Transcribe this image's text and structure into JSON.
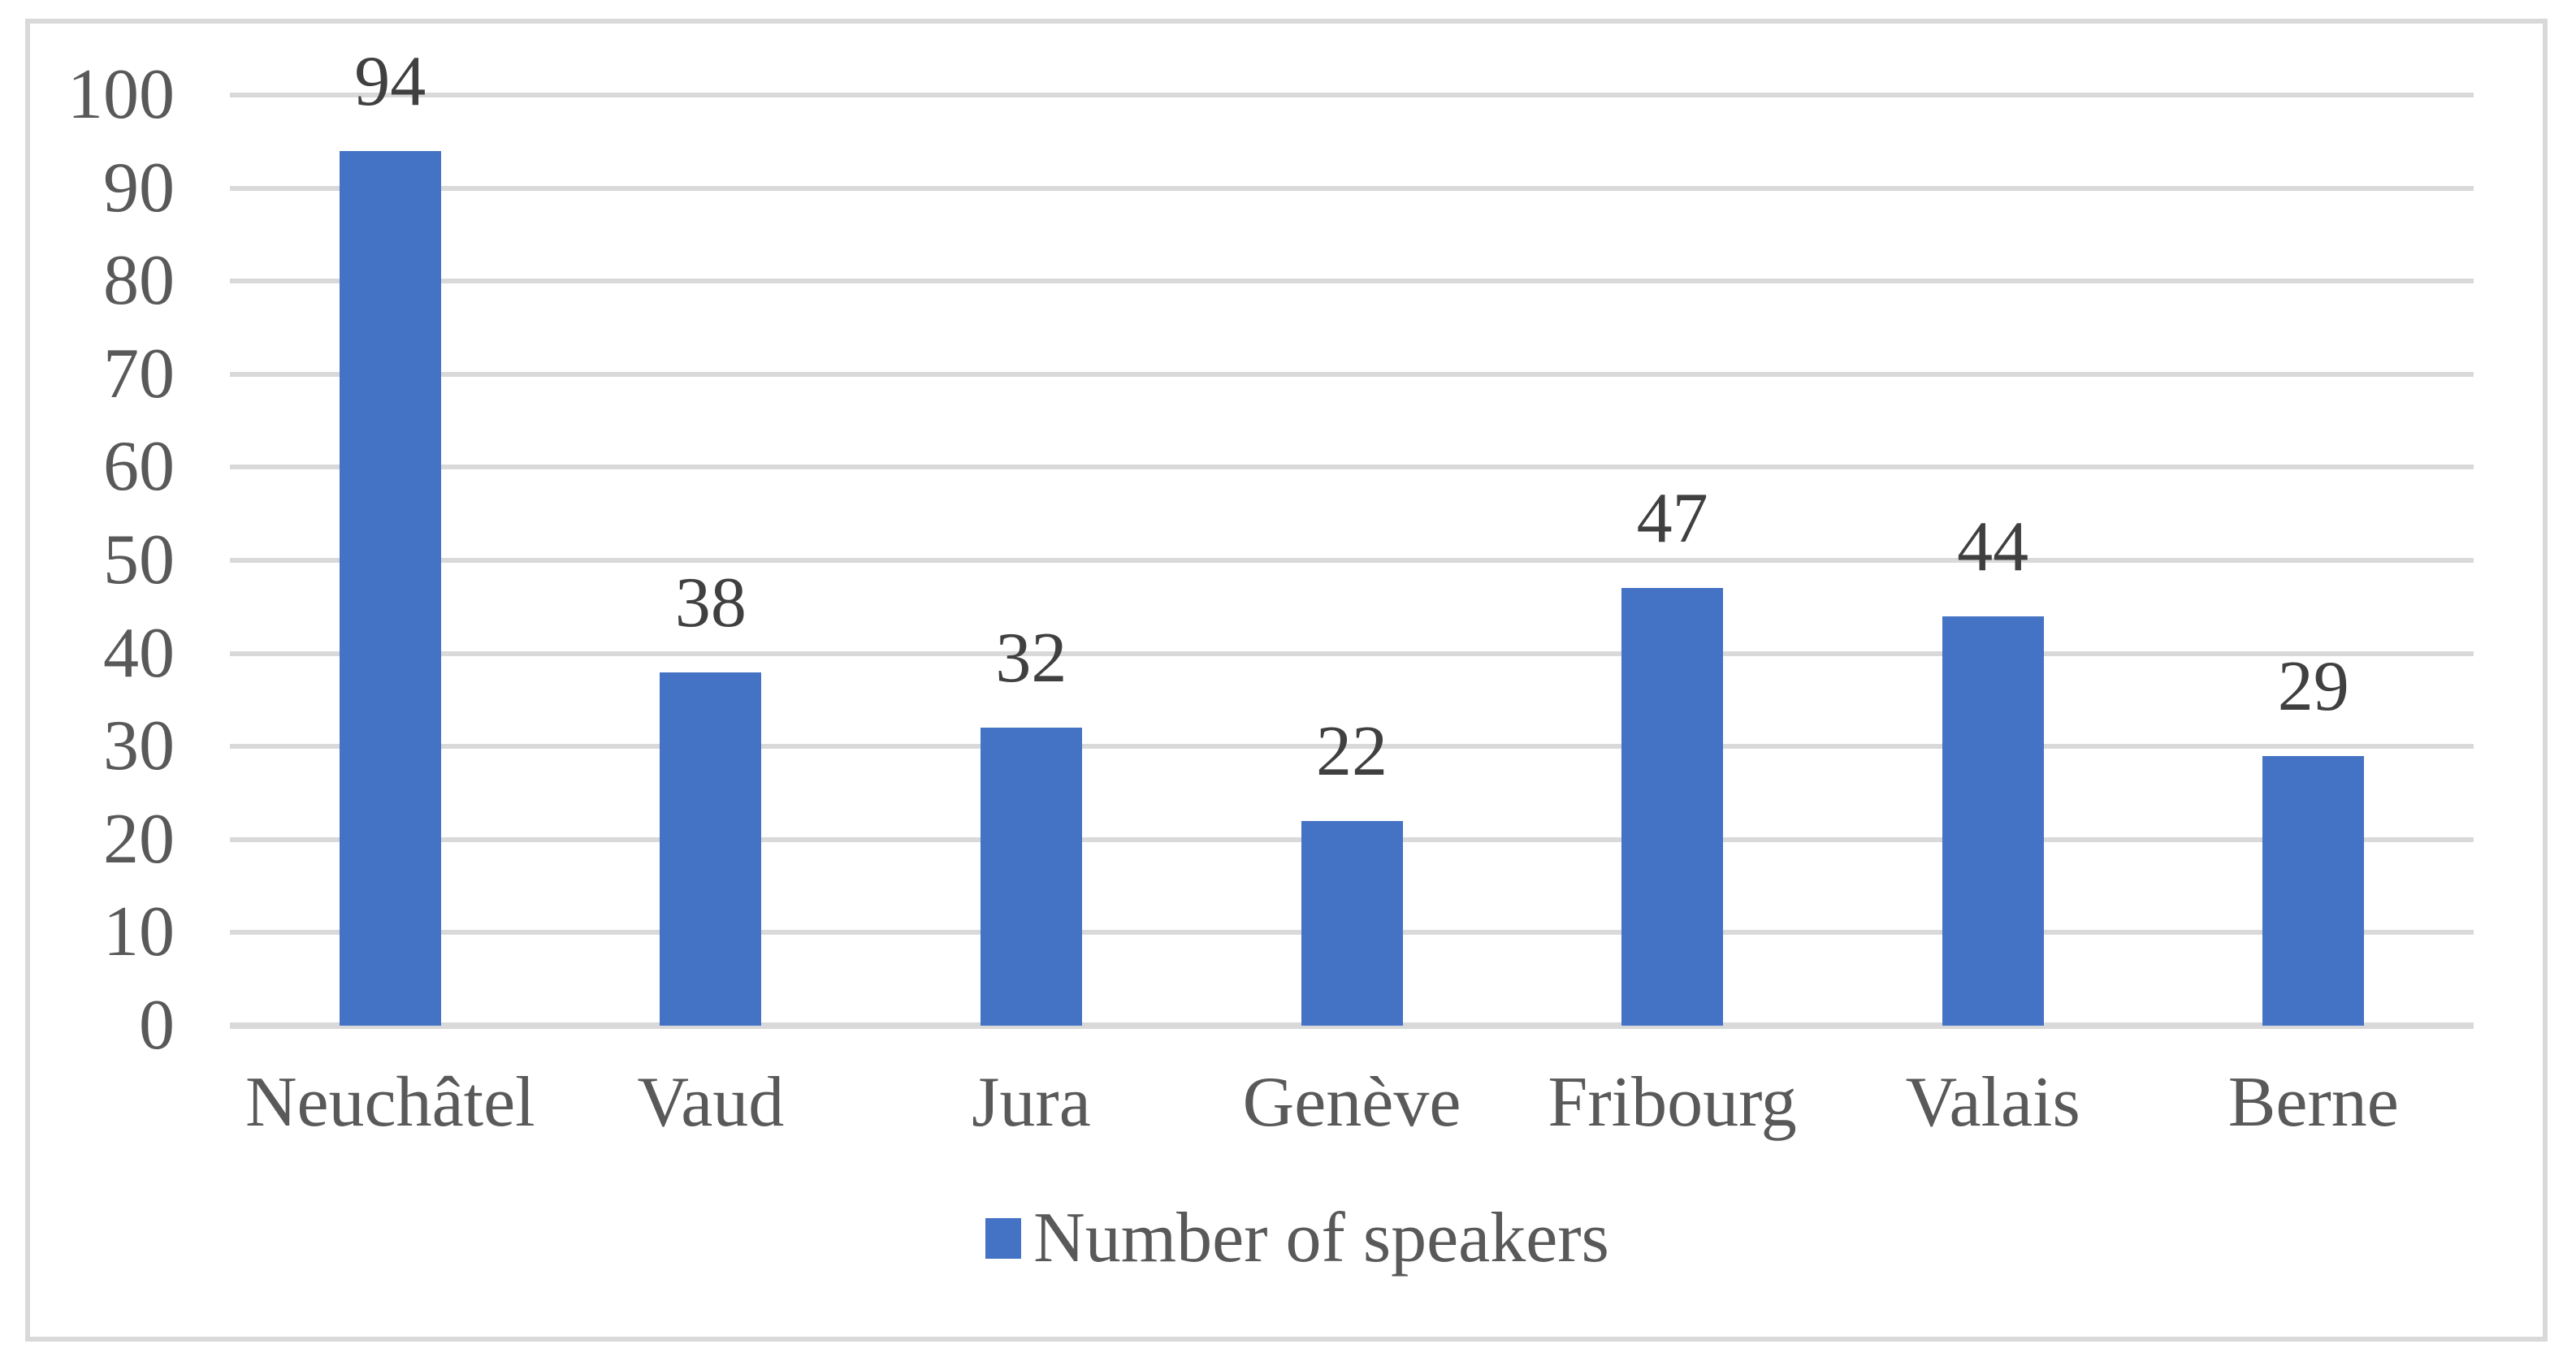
{
  "chart_data": {
    "type": "bar",
    "categories": [
      "Neuchâtel",
      "Vaud",
      "Jura",
      "Genève",
      "Fribourg",
      "Valais",
      "Berne"
    ],
    "category_keys": [
      "neuchatel",
      "vaud",
      "jura",
      "geneve",
      "fribourg",
      "valais",
      "berne"
    ],
    "values": [
      94,
      38,
      32,
      22,
      47,
      44,
      29
    ],
    "series_name": "Number of speakers",
    "legend_label": "Number of speakers",
    "legend_position": "bottom",
    "data_labels": [
      "94",
      "38",
      "32",
      "22",
      "47",
      "44",
      "29"
    ],
    "yticks": [
      0,
      10,
      20,
      30,
      40,
      50,
      60,
      70,
      80,
      90,
      100
    ],
    "ylim": [
      0,
      100
    ],
    "grid": true,
    "xlabel": "",
    "ylabel": ""
  },
  "colors": {
    "bar_fill": "#4472C4",
    "gridline": "#D9D9D9",
    "frame_border": "#D9D9D9",
    "axis_text": "#595959",
    "data_label_text": "#404040",
    "background": "#FFFFFF"
  }
}
